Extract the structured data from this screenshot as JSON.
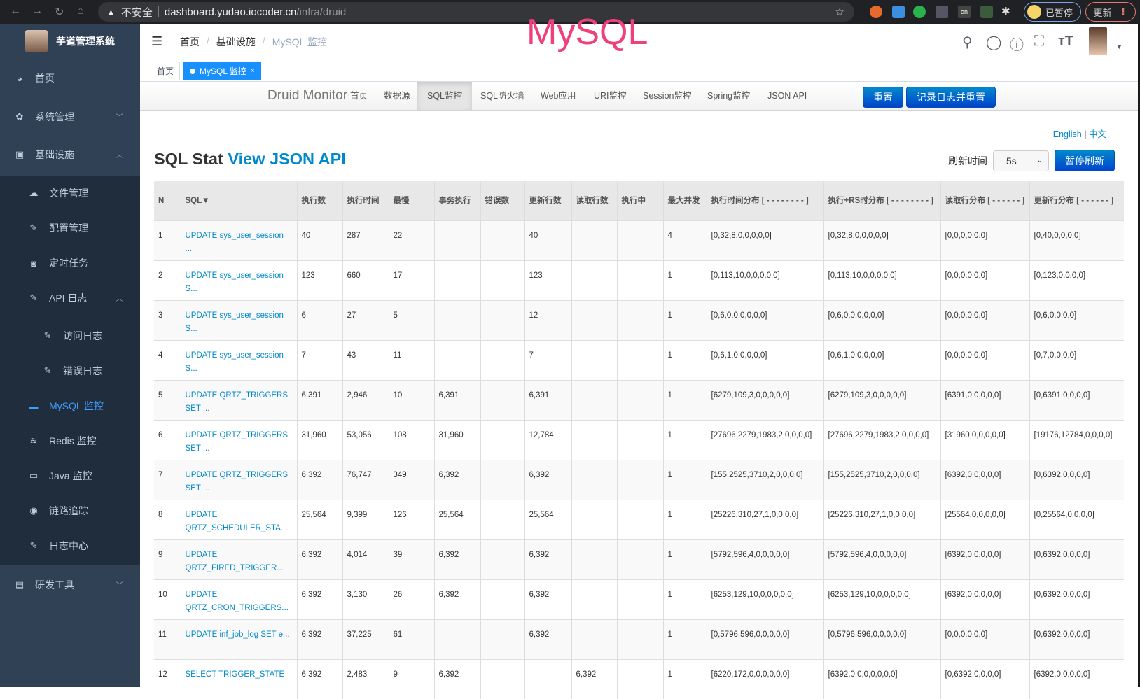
{
  "browser": {
    "security": "不安全",
    "host": "dashboard.yudao.iocoder.cn",
    "path": "/infra/druid",
    "profile": "已暂停",
    "update": "更新",
    "ext_badge": "on"
  },
  "sidebar": {
    "title": "芋道管理系统",
    "items": [
      {
        "label": "首页",
        "icon": "dashboard-icon"
      },
      {
        "label": "系统管理",
        "icon": "gear-icon"
      },
      {
        "label": "基础设施",
        "icon": "monitor-icon"
      },
      {
        "label": "文件管理",
        "icon": "cloud-upload-icon"
      },
      {
        "label": "配置管理",
        "icon": "edit-icon"
      },
      {
        "label": "定时任务",
        "icon": "job-icon"
      },
      {
        "label": "API 日志",
        "icon": "edit-icon"
      },
      {
        "label": "访问日志",
        "icon": "edit-icon"
      },
      {
        "label": "错误日志",
        "icon": "edit-icon"
      },
      {
        "label": "MySQL 监控",
        "icon": "chart-icon",
        "active": true
      },
      {
        "label": "Redis 监控",
        "icon": "redis-icon"
      },
      {
        "label": "Java 监控",
        "icon": "server-icon"
      },
      {
        "label": "链路追踪",
        "icon": "eye-icon"
      },
      {
        "label": "日志中心",
        "icon": "edit-icon"
      },
      {
        "label": "研发工具",
        "icon": "toolbox-icon"
      }
    ]
  },
  "navbar": {
    "breadcrumb": [
      "首页",
      "基础设施",
      "MySQL 监控"
    ],
    "overlay": "MySQL"
  },
  "tags": [
    "首页",
    "MySQL 监控"
  ],
  "druid": {
    "brand": "Druid Monitor",
    "nav": [
      "首页",
      "数据源",
      "SQL监控",
      "SQL防火墙",
      "Web应用",
      "URI监控",
      "Session监控",
      "Spring监控",
      "JSON API"
    ],
    "reset": "重置",
    "log_reset": "记录日志并重置",
    "lang_en": "English",
    "lang_zh": "中文",
    "title": "SQL Stat",
    "title_link": "View JSON API",
    "refresh_label": "刷新时间",
    "refresh_value": "5s",
    "pause": "暂停刷新"
  },
  "table": {
    "headers": [
      "N",
      "SQL▼",
      "执行数",
      "执行时间",
      "最慢",
      "事务执行",
      "错误数",
      "更新行数",
      "读取行数",
      "执行中",
      "最大并发",
      "执行时间分布 [ - - - - - - - - ]",
      "执行+RS时分布 [ - - - - - - - - ]",
      "读取行分布 [ - - - - - - ]",
      "更新行分布 [ - - - - - - ]"
    ],
    "rows": [
      [
        "1",
        "UPDATE sys_user_session ...",
        "40",
        "287",
        "22",
        "",
        "",
        "40",
        "",
        "",
        "4",
        "[0,32,8,0,0,0,0,0]",
        "[0,32,8,0,0,0,0,0]",
        "[0,0,0,0,0,0]",
        "[0,40,0,0,0,0]"
      ],
      [
        "2",
        "UPDATE sys_user_session S...",
        "123",
        "660",
        "17",
        "",
        "",
        "123",
        "",
        "",
        "1",
        "[0,113,10,0,0,0,0,0]",
        "[0,113,10,0,0,0,0,0]",
        "[0,0,0,0,0,0]",
        "[0,123,0,0,0,0]"
      ],
      [
        "3",
        "UPDATE sys_user_session S...",
        "6",
        "27",
        "5",
        "",
        "",
        "12",
        "",
        "",
        "1",
        "[0,6,0,0,0,0,0,0]",
        "[0,6,0,0,0,0,0,0]",
        "[0,0,0,0,0,0]",
        "[0,6,0,0,0,0]"
      ],
      [
        "4",
        "UPDATE sys_user_session S...",
        "7",
        "43",
        "11",
        "",
        "",
        "7",
        "",
        "",
        "1",
        "[0,6,1,0,0,0,0,0]",
        "[0,6,1,0,0,0,0,0]",
        "[0,0,0,0,0,0]",
        "[0,7,0,0,0,0]"
      ],
      [
        "5",
        "UPDATE QRTZ_TRIGGERS SET ...",
        "6,391",
        "2,946",
        "10",
        "6,391",
        "",
        "6,391",
        "",
        "",
        "1",
        "[6279,109,3,0,0,0,0,0]",
        "[6279,109,3,0,0,0,0,0]",
        "[6391,0,0,0,0,0]",
        "[0,6391,0,0,0,0]"
      ],
      [
        "6",
        "UPDATE QRTZ_TRIGGERS SET ...",
        "31,960",
        "53,056",
        "108",
        "31,960",
        "",
        "12,784",
        "",
        "",
        "1",
        "[27696,2279,1983,2,0,0,0,0]",
        "[27696,2279,1983,2,0,0,0,0]",
        "[31960,0,0,0,0,0]",
        "[19176,12784,0,0,0,0]"
      ],
      [
        "7",
        "UPDATE QRTZ_TRIGGERS SET ...",
        "6,392",
        "76,747",
        "349",
        "6,392",
        "",
        "6,392",
        "",
        "",
        "1",
        "[155,2525,3710,2,0,0,0,0]",
        "[155,2525,3710,2,0,0,0,0]",
        "[6392,0,0,0,0,0]",
        "[0,6392,0,0,0,0]"
      ],
      [
        "8",
        "UPDATE QRTZ_SCHEDULER_STA...",
        "25,564",
        "9,399",
        "126",
        "25,564",
        "",
        "25,564",
        "",
        "",
        "1",
        "[25226,310,27,1,0,0,0,0]",
        "[25226,310,27,1,0,0,0,0]",
        "[25564,0,0,0,0,0]",
        "[0,25564,0,0,0,0]"
      ],
      [
        "9",
        "UPDATE QRTZ_FIRED_TRIGGER...",
        "6,392",
        "4,014",
        "39",
        "6,392",
        "",
        "6,392",
        "",
        "",
        "1",
        "[5792,596,4,0,0,0,0,0]",
        "[5792,596,4,0,0,0,0,0]",
        "[6392,0,0,0,0,0]",
        "[0,6392,0,0,0,0]"
      ],
      [
        "10",
        "UPDATE QRTZ_CRON_TRIGGERS...",
        "6,392",
        "3,130",
        "26",
        "6,392",
        "",
        "6,392",
        "",
        "",
        "1",
        "[6253,129,10,0,0,0,0,0]",
        "[6253,129,10,0,0,0,0,0]",
        "[6392,0,0,0,0,0]",
        "[0,6392,0,0,0,0]"
      ],
      [
        "11",
        "UPDATE inf_job_log SET e...",
        "6,392",
        "37,225",
        "61",
        "",
        "",
        "6,392",
        "",
        "",
        "1",
        "[0,5796,596,0,0,0,0,0]",
        "[0,5796,596,0,0,0,0,0]",
        "[0,0,0,0,0,0]",
        "[0,6392,0,0,0,0]"
      ],
      [
        "12",
        "SELECT TRIGGER_STATE",
        "6,392",
        "2,483",
        "9",
        "6,392",
        "",
        "",
        "6,392",
        "",
        "1",
        "[6220,172,0,0,0,0,0,0]",
        "[6392,0,0,0,0,0,0,0]",
        "[0,6392,0,0,0,0]",
        "[6392,0,0,0,0,0]"
      ]
    ]
  },
  "colors": {
    "sidebar": "#304156",
    "submenu": "#1f2d3d",
    "active": "#409eff",
    "link": "#0088cc",
    "overlay": "#f0407a",
    "tag_active": "#1890ff"
  }
}
